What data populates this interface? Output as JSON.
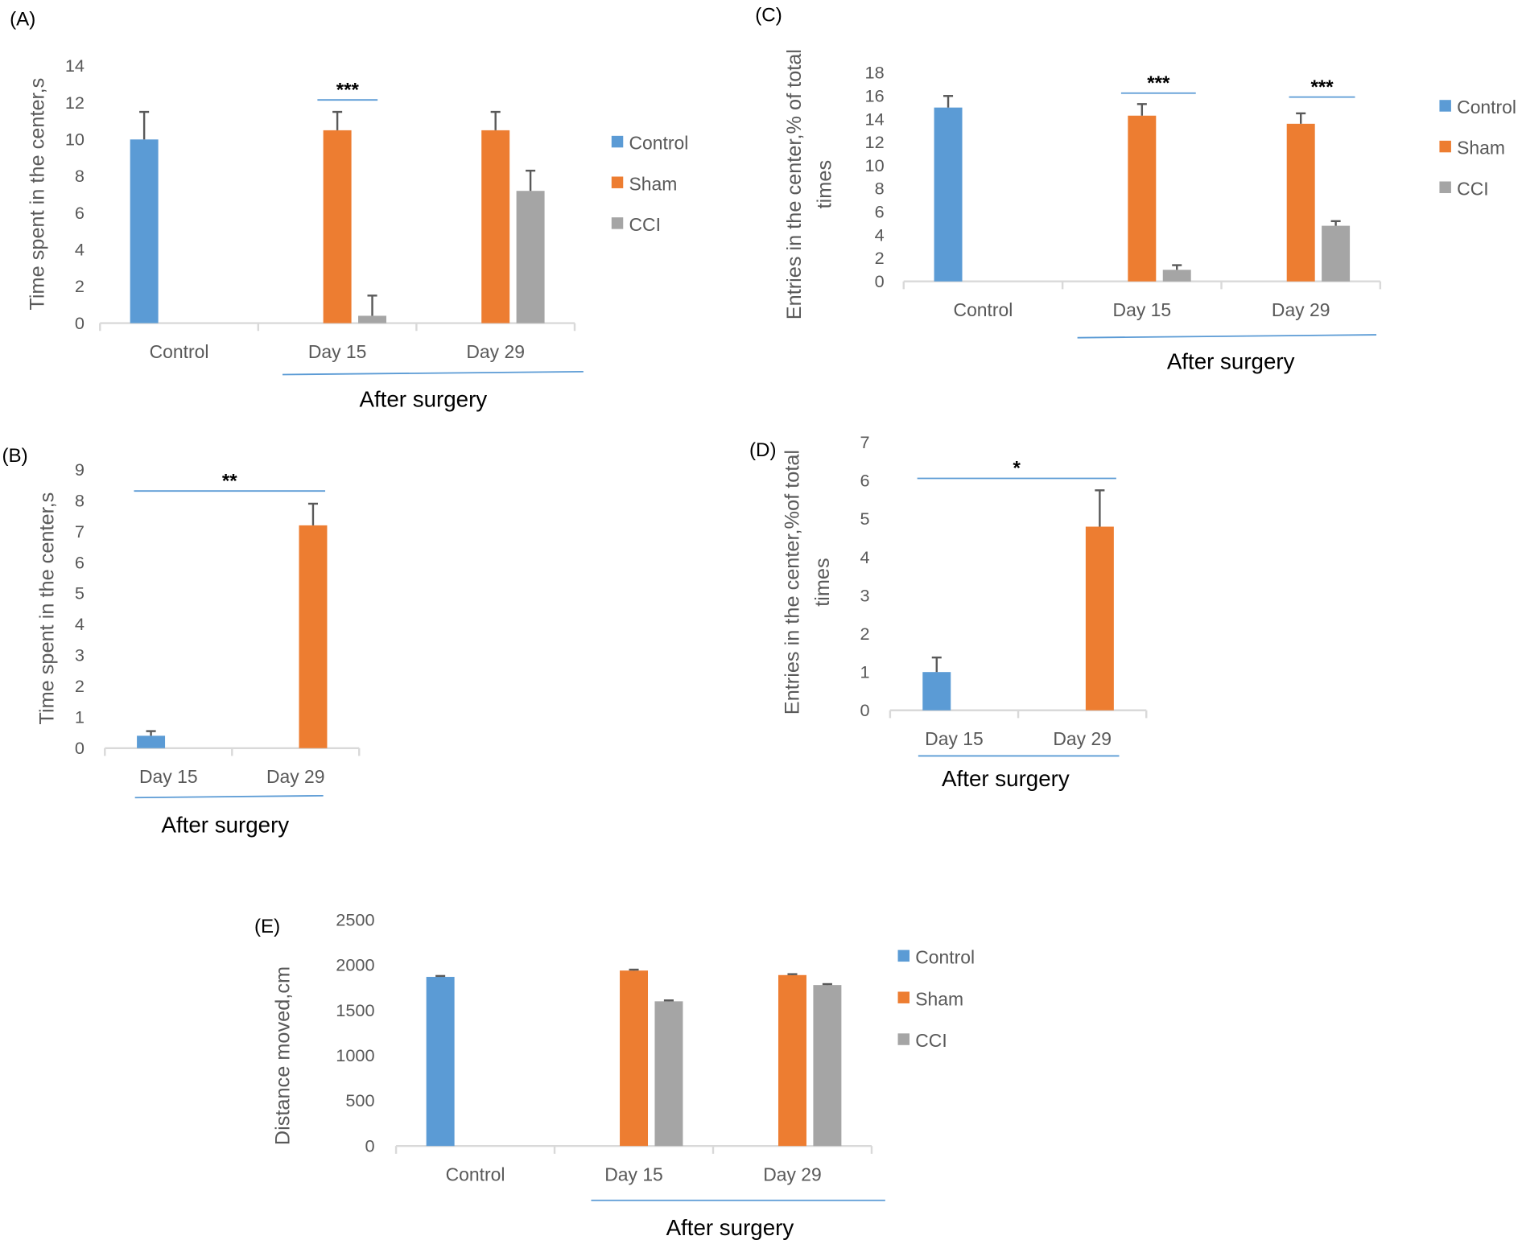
{
  "chart_data": [
    {
      "panel": "(A)",
      "type": "bar",
      "categories": [
        "Control",
        "Day 15",
        "Day 29"
      ],
      "ylabel": "Time spent in the center,s",
      "ylim": [
        0,
        14
      ],
      "yticks": [
        0,
        2,
        4,
        6,
        8,
        10,
        12,
        14
      ],
      "series": [
        {
          "name": "Control",
          "color": "#5B9BD5",
          "values": [
            10,
            null,
            null
          ],
          "error_top": [
            11.5,
            null,
            null
          ]
        },
        {
          "name": "Sham",
          "color": "#ED7D31",
          "values": [
            null,
            10.5,
            10.5
          ],
          "error_top": [
            null,
            11.5,
            11.5
          ]
        },
        {
          "name": "CCI",
          "color": "#A5A5A5",
          "values": [
            null,
            0.4,
            7.2
          ],
          "error_top": [
            null,
            1.5,
            8.3
          ]
        }
      ],
      "annotations": [
        "***"
      ],
      "group_label": "After surgery",
      "legend": "right",
      "grid": false
    },
    {
      "panel": "(B)",
      "type": "bar",
      "categories": [
        "Day 15",
        "Day 29"
      ],
      "ylabel": "Time spent in the center,s",
      "ylim": [
        0,
        9
      ],
      "yticks": [
        0,
        1,
        2,
        3,
        4,
        5,
        6,
        7,
        8,
        9
      ],
      "series": [
        {
          "color": "#5B9BD5",
          "values": [
            0.4,
            null
          ],
          "error_top": [
            0.55,
            null
          ]
        },
        {
          "color": "#ED7D31",
          "values": [
            null,
            7.2
          ],
          "error_top": [
            null,
            7.9
          ]
        }
      ],
      "annotations": [
        "**"
      ],
      "group_label": "After surgery",
      "legend": "none",
      "grid": false
    },
    {
      "panel": "(C)",
      "type": "bar",
      "categories": [
        "Control",
        "Day 15",
        "Day 29"
      ],
      "ylabel": [
        "Entries in the center,% of total",
        "times"
      ],
      "ylim": [
        0,
        18
      ],
      "yticks": [
        0,
        2,
        4,
        6,
        8,
        10,
        12,
        14,
        16,
        18
      ],
      "series": [
        {
          "name": "Control",
          "color": "#5B9BD5",
          "values": [
            15,
            null,
            null
          ],
          "error_top": [
            16,
            null,
            null
          ]
        },
        {
          "name": "Sham",
          "color": "#ED7D31",
          "values": [
            null,
            14.3,
            13.6
          ],
          "error_top": [
            null,
            15.3,
            14.5
          ]
        },
        {
          "name": "CCI",
          "color": "#A5A5A5",
          "values": [
            null,
            1.0,
            4.8
          ],
          "error_top": [
            null,
            1.4,
            5.2
          ]
        }
      ],
      "annotations": [
        "***",
        "***"
      ],
      "group_label": "After surgery",
      "legend": "right",
      "grid": false
    },
    {
      "panel": "(D)",
      "type": "bar",
      "categories": [
        "Day 15",
        "Day 29"
      ],
      "ylabel": [
        "Entries in the center,%of total",
        "times"
      ],
      "ylim": [
        0,
        7
      ],
      "yticks": [
        0,
        1,
        2,
        3,
        4,
        5,
        6,
        7
      ],
      "series": [
        {
          "color": "#5B9BD5",
          "values": [
            1.0,
            null
          ],
          "error_top": [
            1.38,
            null
          ]
        },
        {
          "color": "#ED7D31",
          "values": [
            null,
            4.8
          ],
          "error_top": [
            null,
            5.75
          ]
        }
      ],
      "annotations": [
        "*"
      ],
      "group_label": "After surgery",
      "legend": "none",
      "grid": false
    },
    {
      "panel": "(E)",
      "type": "bar",
      "categories": [
        "Control",
        "Day 15",
        "Day 29"
      ],
      "ylabel": "Distance moved,cm",
      "ylim": [
        0,
        2500
      ],
      "yticks": [
        0,
        500,
        1000,
        1500,
        2000,
        2500
      ],
      "series": [
        {
          "name": "Control",
          "color": "#5B9BD5",
          "values": [
            1870,
            null,
            null
          ],
          "error_top": [
            1880,
            null,
            null
          ]
        },
        {
          "name": "Sham",
          "color": "#ED7D31",
          "values": [
            null,
            1940,
            1890
          ],
          "error_top": [
            null,
            1950,
            1900
          ]
        },
        {
          "name": "CCI",
          "color": "#A5A5A5",
          "values": [
            null,
            1600,
            1780
          ],
          "error_top": [
            null,
            1610,
            1790
          ]
        }
      ],
      "annotations": [],
      "group_label": "After surgery",
      "legend": "right",
      "grid": false
    }
  ]
}
